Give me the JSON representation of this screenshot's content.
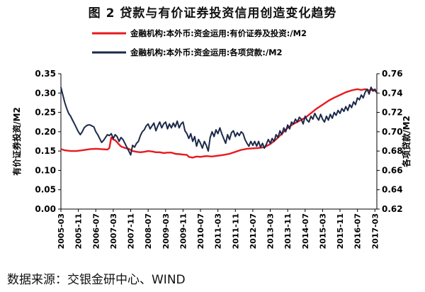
{
  "header": {
    "title": "图 2  贷款与有价证券投资信用创造变化趋势"
  },
  "source": "数据来源：交银金研中心、WIND",
  "chart_data": {
    "type": "line",
    "title": "图 2  贷款与有价证券投资信用创造变化趋势",
    "ylabel": "有价证券投资/M2",
    "y2label": "各项贷款/M2",
    "ylim": [
      0,
      0.35
    ],
    "y2lim": [
      0.62,
      0.76
    ],
    "yticks": [
      "0.00",
      "0.05",
      "0.10",
      "0.15",
      "0.20",
      "0.25",
      "0.30",
      "0.35"
    ],
    "y2ticks": [
      "0.62",
      "0.64",
      "0.66",
      "0.68",
      "0.70",
      "0.72",
      "0.74",
      "0.76"
    ],
    "grid": false,
    "legend_position": "top",
    "colors": {
      "securities": "#e8191e",
      "loans": "#1c2a4a"
    },
    "categories": [
      "2005-03",
      "2005-11",
      "2006-07",
      "2007-03",
      "2007-11",
      "2008-07",
      "2009-03",
      "2009-11",
      "2010-07",
      "2011-03",
      "2011-11",
      "2012-07",
      "2013-03",
      "2013-11",
      "2014-07",
      "2015-03",
      "2015-11",
      "2016-07",
      "2017-03"
    ],
    "series": [
      {
        "name": "金融机构:本外币:资金运用:有价证券及投资:/M2",
        "axis": "left",
        "values": [
          [
            0,
            0.155
          ],
          [
            2,
            0.152
          ],
          [
            5,
            0.15
          ],
          [
            8,
            0.15
          ],
          [
            11,
            0.152
          ],
          [
            15,
            0.155
          ],
          [
            18,
            0.156
          ],
          [
            21,
            0.155
          ],
          [
            24,
            0.154
          ],
          [
            25,
            0.158
          ],
          [
            26,
            0.185
          ],
          [
            27,
            0.18
          ],
          [
            28,
            0.178
          ],
          [
            29,
            0.173
          ],
          [
            30,
            0.167
          ],
          [
            31,
            0.162
          ],
          [
            33,
            0.158
          ],
          [
            35,
            0.156
          ],
          [
            37,
            0.15
          ],
          [
            39,
            0.148
          ],
          [
            41,
            0.147
          ],
          [
            43,
            0.148
          ],
          [
            45,
            0.15
          ],
          [
            47,
            0.149
          ],
          [
            49,
            0.147
          ],
          [
            51,
            0.147
          ],
          [
            53,
            0.145
          ],
          [
            55,
            0.146
          ],
          [
            57,
            0.146
          ],
          [
            59,
            0.143
          ],
          [
            61,
            0.142
          ],
          [
            63,
            0.141
          ],
          [
            65,
            0.14
          ],
          [
            66,
            0.135
          ],
          [
            68,
            0.133
          ],
          [
            70,
            0.136
          ],
          [
            72,
            0.135
          ],
          [
            75,
            0.137
          ],
          [
            78,
            0.136
          ],
          [
            81,
            0.138
          ],
          [
            84,
            0.14
          ],
          [
            87,
            0.143
          ],
          [
            90,
            0.148
          ],
          [
            93,
            0.153
          ],
          [
            96,
            0.156
          ],
          [
            99,
            0.157
          ],
          [
            102,
            0.158
          ],
          [
            105,
            0.16
          ],
          [
            108,
            0.168
          ],
          [
            111,
            0.18
          ],
          [
            114,
            0.195
          ],
          [
            117,
            0.21
          ],
          [
            120,
            0.22
          ],
          [
            123,
            0.228
          ],
          [
            126,
            0.236
          ],
          [
            129,
            0.248
          ],
          [
            132,
            0.26
          ],
          [
            135,
            0.27
          ],
          [
            138,
            0.28
          ],
          [
            141,
            0.288
          ],
          [
            144,
            0.295
          ],
          [
            147,
            0.302
          ],
          [
            150,
            0.307
          ],
          [
            153,
            0.31
          ],
          [
            155,
            0.308
          ],
          [
            157,
            0.31
          ],
          [
            159,
            0.307
          ],
          [
            161,
            0.309
          ],
          [
            163,
            0.303
          ]
        ]
      },
      {
        "name": "金融机构:本外币:资金运用:各项贷款:/M2",
        "axis": "right",
        "values": [
          [
            0,
            0.746
          ],
          [
            1,
            0.738
          ],
          [
            2,
            0.73
          ],
          [
            3,
            0.724
          ],
          [
            4,
            0.719
          ],
          [
            5,
            0.716
          ],
          [
            6,
            0.712
          ],
          [
            7,
            0.708
          ],
          [
            8,
            0.704
          ],
          [
            9,
            0.7
          ],
          [
            10,
            0.697
          ],
          [
            11,
            0.7
          ],
          [
            12,
            0.704
          ],
          [
            13,
            0.706
          ],
          [
            14,
            0.707
          ],
          [
            15,
            0.707
          ],
          [
            16,
            0.706
          ],
          [
            17,
            0.705
          ],
          [
            18,
            0.7
          ],
          [
            19,
            0.697
          ],
          [
            20,
            0.693
          ],
          [
            21,
            0.689
          ],
          [
            22,
            0.691
          ],
          [
            23,
            0.694
          ],
          [
            24,
            0.697
          ],
          [
            25,
            0.696
          ],
          [
            26,
            0.698
          ],
          [
            27,
            0.693
          ],
          [
            28,
            0.697
          ],
          [
            29,
            0.695
          ],
          [
            30,
            0.69
          ],
          [
            31,
            0.694
          ],
          [
            32,
            0.692
          ],
          [
            33,
            0.688
          ],
          [
            34,
            0.684
          ],
          [
            35,
            0.68
          ],
          [
            36,
            0.676
          ],
          [
            37,
            0.686
          ],
          [
            38,
            0.684
          ],
          [
            39,
            0.688
          ],
          [
            40,
            0.69
          ],
          [
            41,
            0.696
          ],
          [
            42,
            0.7
          ],
          [
            43,
            0.702
          ],
          [
            44,
            0.706
          ],
          [
            45,
            0.708
          ],
          [
            46,
            0.703
          ],
          [
            47,
            0.706
          ],
          [
            48,
            0.709
          ],
          [
            49,
            0.701
          ],
          [
            50,
            0.706
          ],
          [
            51,
            0.71
          ],
          [
            52,
            0.704
          ],
          [
            53,
            0.708
          ],
          [
            54,
            0.71
          ],
          [
            55,
            0.703
          ],
          [
            56,
            0.708
          ],
          [
            57,
            0.704
          ],
          [
            58,
            0.709
          ],
          [
            59,
            0.705
          ],
          [
            60,
            0.711
          ],
          [
            61,
            0.704
          ],
          [
            62,
            0.708
          ],
          [
            63,
            0.71
          ],
          [
            64,
            0.701
          ],
          [
            65,
            0.698
          ],
          [
            66,
            0.693
          ],
          [
            67,
            0.698
          ],
          [
            68,
            0.69
          ],
          [
            69,
            0.695
          ],
          [
            70,
            0.685
          ],
          [
            71,
            0.692
          ],
          [
            72,
            0.688
          ],
          [
            73,
            0.683
          ],
          [
            74,
            0.69
          ],
          [
            75,
            0.686
          ],
          [
            76,
            0.68
          ],
          [
            77,
            0.694
          ],
          [
            78,
            0.7
          ],
          [
            79,
            0.695
          ],
          [
            80,
            0.702
          ],
          [
            81,
            0.698
          ],
          [
            82,
            0.704
          ],
          [
            83,
            0.698
          ],
          [
            84,
            0.693
          ],
          [
            85,
            0.688
          ],
          [
            86,
            0.697
          ],
          [
            87,
            0.692
          ],
          [
            88,
            0.699
          ],
          [
            89,
            0.701
          ],
          [
            90,
            0.695
          ],
          [
            91,
            0.699
          ],
          [
            92,
            0.696
          ],
          [
            93,
            0.7
          ],
          [
            94,
            0.698
          ],
          [
            95,
            0.692
          ],
          [
            96,
            0.688
          ],
          [
            97,
            0.685
          ],
          [
            98,
            0.69
          ],
          [
            99,
            0.686
          ],
          [
            100,
            0.69
          ],
          [
            101,
            0.685
          ],
          [
            102,
            0.69
          ],
          [
            103,
            0.684
          ],
          [
            104,
            0.688
          ],
          [
            105,
            0.683
          ],
          [
            106,
            0.687
          ],
          [
            107,
            0.692
          ],
          [
            108,
            0.688
          ],
          [
            109,
            0.693
          ],
          [
            110,
            0.69
          ],
          [
            111,
            0.697
          ],
          [
            112,
            0.694
          ],
          [
            113,
            0.701
          ],
          [
            114,
            0.697
          ],
          [
            115,
            0.704
          ],
          [
            116,
            0.7
          ],
          [
            117,
            0.707
          ],
          [
            118,
            0.703
          ],
          [
            119,
            0.71
          ],
          [
            120,
            0.708
          ],
          [
            121,
            0.713
          ],
          [
            122,
            0.71
          ],
          [
            123,
            0.715
          ],
          [
            124,
            0.713
          ],
          [
            125,
            0.708
          ],
          [
            126,
            0.716
          ],
          [
            127,
            0.712
          ],
          [
            128,
            0.71
          ],
          [
            129,
            0.716
          ],
          [
            130,
            0.713
          ],
          [
            131,
            0.719
          ],
          [
            132,
            0.715
          ],
          [
            133,
            0.712
          ],
          [
            134,
            0.718
          ],
          [
            135,
            0.713
          ],
          [
            136,
            0.71
          ],
          [
            137,
            0.716
          ],
          [
            138,
            0.712
          ],
          [
            139,
            0.718
          ],
          [
            140,
            0.714
          ],
          [
            141,
            0.72
          ],
          [
            142,
            0.717
          ],
          [
            143,
            0.722
          ],
          [
            144,
            0.719
          ],
          [
            145,
            0.724
          ],
          [
            146,
            0.721
          ],
          [
            147,
            0.726
          ],
          [
            148,
            0.722
          ],
          [
            149,
            0.728
          ],
          [
            150,
            0.725
          ],
          [
            151,
            0.731
          ],
          [
            152,
            0.728
          ],
          [
            153,
            0.735
          ],
          [
            154,
            0.733
          ],
          [
            155,
            0.738
          ],
          [
            156,
            0.735
          ],
          [
            157,
            0.741
          ],
          [
            158,
            0.744
          ],
          [
            159,
            0.739
          ],
          [
            160,
            0.746
          ],
          [
            161,
            0.742
          ],
          [
            162,
            0.744
          ],
          [
            163,
            0.74
          ]
        ]
      }
    ]
  }
}
